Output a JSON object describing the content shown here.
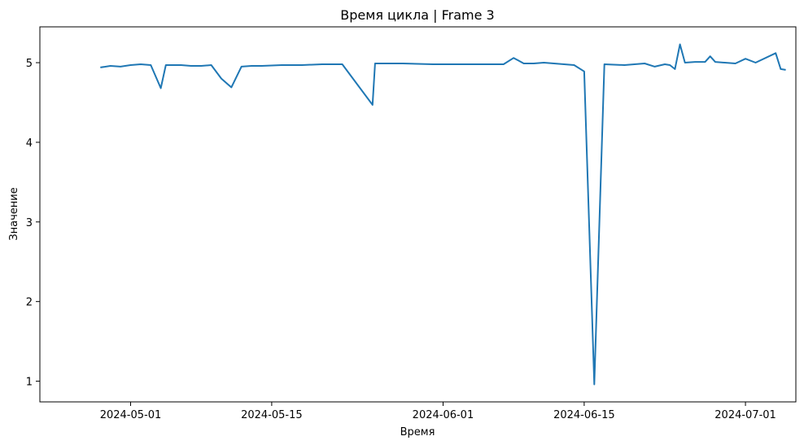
{
  "chart_data": {
    "type": "line",
    "title": "Время цикла | Frame 3",
    "xlabel": "Время",
    "ylabel": "Значение",
    "x_ticks": [
      "2024-05-01",
      "2024-05-15",
      "2024-06-01",
      "2024-06-15",
      "2024-07-01"
    ],
    "y_ticks": [
      1,
      2,
      3,
      4,
      5
    ],
    "xlim": [
      "2024-04-22",
      "2024-07-06"
    ],
    "ylim": [
      0.74,
      5.45
    ],
    "grid": false,
    "color": "#1f77b4",
    "series": [
      {
        "x": [
          "2024-04-28",
          "2024-04-29",
          "2024-04-30",
          "2024-05-01",
          "2024-05-02",
          "2024-05-03",
          "2024-05-04",
          "2024-05-04T12:00",
          "2024-05-05",
          "2024-05-06",
          "2024-05-07",
          "2024-05-08",
          "2024-05-09",
          "2024-05-10",
          "2024-05-11",
          "2024-05-12",
          "2024-05-13",
          "2024-05-14",
          "2024-05-16",
          "2024-05-17",
          "2024-05-18",
          "2024-05-20",
          "2024-05-22",
          "2024-05-25",
          "2024-05-25T06:00",
          "2024-05-26",
          "2024-05-28",
          "2024-05-31",
          "2024-06-03",
          "2024-06-06",
          "2024-06-07",
          "2024-06-08",
          "2024-06-09",
          "2024-06-10",
          "2024-06-11",
          "2024-06-12",
          "2024-06-13",
          "2024-06-14",
          "2024-06-15",
          "2024-06-16",
          "2024-06-17",
          "2024-06-19",
          "2024-06-20",
          "2024-06-21",
          "2024-06-22",
          "2024-06-23",
          "2024-06-23T12:00",
          "2024-06-24",
          "2024-06-24T12:00",
          "2024-06-25",
          "2024-06-26",
          "2024-06-27",
          "2024-06-27T12:00",
          "2024-06-28",
          "2024-06-30",
          "2024-07-01",
          "2024-07-02",
          "2024-07-04",
          "2024-07-04T12:00",
          "2024-07-05"
        ],
        "values": [
          4.94,
          4.96,
          4.95,
          4.97,
          4.98,
          4.97,
          4.68,
          4.97,
          4.97,
          4.97,
          4.96,
          4.96,
          4.97,
          4.8,
          4.69,
          4.95,
          4.96,
          4.96,
          4.97,
          4.97,
          4.97,
          4.98,
          4.98,
          4.47,
          4.99,
          4.99,
          4.99,
          4.98,
          4.98,
          4.98,
          4.98,
          5.06,
          4.99,
          4.99,
          5.0,
          4.99,
          4.98,
          4.97,
          4.89,
          0.96,
          4.98,
          4.97,
          4.98,
          4.99,
          4.95,
          4.98,
          4.97,
          4.92,
          5.23,
          5.0,
          5.01,
          5.01,
          5.08,
          5.01,
          4.99,
          5.05,
          5.0,
          5.12,
          4.92,
          4.91
        ]
      }
    ]
  }
}
